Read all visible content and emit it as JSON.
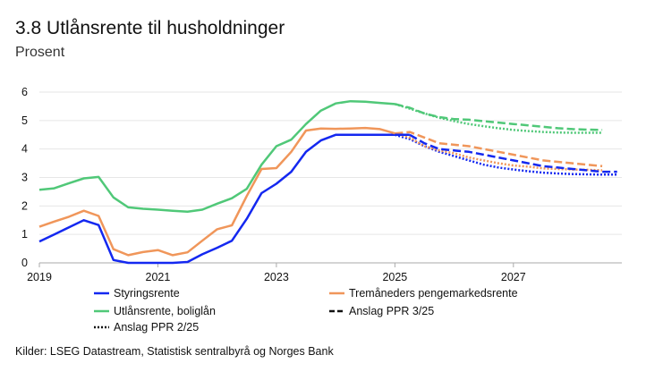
{
  "title": "3.8 Utlånsrente til husholdninger",
  "subtitle": "Prosent",
  "source": "Kilder: LSEG Datastream, Statistisk sentralbyrå og Norges Bank",
  "chart_data": {
    "type": "line",
    "xlim": [
      2019,
      2028.83
    ],
    "ylim": [
      0,
      6
    ],
    "xticks": [
      "2019",
      "2021",
      "2023",
      "2025",
      "2027"
    ],
    "yticks": [
      "0",
      "1",
      "2",
      "3",
      "4",
      "5",
      "6"
    ],
    "grid": "horizontal",
    "legend_placement": "bottom",
    "colors": {
      "blue": "#1428f0",
      "orange": "#f0965a",
      "green": "#50c878"
    },
    "series": [
      {
        "name": "Styringsrente",
        "color": "#1428f0",
        "style": "solid",
        "x_start": 2019,
        "step": 0.25,
        "values": [
          0.75,
          1.0,
          1.25,
          1.5,
          1.33,
          0.1,
          0,
          0,
          0,
          0,
          0.03,
          0.3,
          0.53,
          0.78,
          1.55,
          2.45,
          2.78,
          3.2,
          3.9,
          4.3,
          4.5,
          4.5,
          4.5,
          4.5,
          4.5,
          4.5
        ]
      },
      {
        "name": "Tremåneders pengemarkedsrente",
        "color": "#f0965a",
        "style": "solid",
        "x_start": 2019,
        "step": 0.25,
        "values": [
          1.27,
          1.45,
          1.62,
          1.83,
          1.65,
          0.48,
          0.27,
          0.38,
          0.45,
          0.27,
          0.37,
          0.78,
          1.18,
          1.32,
          2.35,
          3.3,
          3.33,
          3.9,
          4.65,
          4.72,
          4.71,
          4.72,
          4.74,
          4.7,
          4.55
        ]
      },
      {
        "name": "Utlånsrente, boliglån",
        "color": "#50c878",
        "style": "solid",
        "x_start": 2019,
        "step": 0.25,
        "values": [
          2.57,
          2.62,
          2.8,
          2.97,
          3.02,
          2.3,
          1.95,
          1.9,
          1.87,
          1.83,
          1.8,
          1.87,
          2.08,
          2.27,
          2.6,
          3.45,
          4.1,
          4.33,
          4.88,
          5.35,
          5.6,
          5.68,
          5.66,
          5.62,
          5.58
        ]
      },
      {
        "name": "Anslag PPR 3/25",
        "legend": true,
        "color": "#1428f0",
        "style": "dashed",
        "x_start": 2025.25,
        "step": 0.25,
        "values": [
          4.5,
          4.2,
          4.0,
          3.95,
          3.9,
          3.8,
          3.7,
          3.6,
          3.5,
          3.4,
          3.35,
          3.3,
          3.25,
          3.2,
          3.2
        ]
      },
      {
        "color": "#f0965a",
        "style": "dashed",
        "x_start": 2025,
        "step": 0.25,
        "values": [
          4.55,
          4.6,
          4.4,
          4.2,
          4.15,
          4.1,
          4.0,
          3.9,
          3.8,
          3.7,
          3.6,
          3.55,
          3.5,
          3.45,
          3.4
        ]
      },
      {
        "color": "#50c878",
        "style": "dashed",
        "x_start": 2025,
        "step": 0.25,
        "values": [
          5.58,
          5.45,
          5.25,
          5.12,
          5.05,
          5.03,
          4.98,
          4.93,
          4.88,
          4.83,
          4.78,
          4.73,
          4.7,
          4.68,
          4.67
        ]
      },
      {
        "name": "Anslag PPR 2/25",
        "legend": true,
        "color": "#1428f0",
        "style": "dotted",
        "x_start": 2025,
        "step": 0.25,
        "values": [
          4.5,
          4.35,
          4.1,
          3.9,
          3.75,
          3.6,
          3.45,
          3.35,
          3.28,
          3.22,
          3.17,
          3.14,
          3.12,
          3.11,
          3.1,
          3.1
        ]
      },
      {
        "color": "#f0965a",
        "style": "dotted",
        "x_start": 2025,
        "step": 0.25,
        "values": [
          4.55,
          4.4,
          4.1,
          3.95,
          3.85,
          3.7,
          3.6,
          3.5,
          3.42,
          3.38,
          3.32,
          3.3,
          3.28,
          3.27,
          3.25
        ]
      },
      {
        "color": "#50c878",
        "style": "dotted",
        "x_start": 2025,
        "step": 0.25,
        "values": [
          5.58,
          5.42,
          5.25,
          5.1,
          4.98,
          4.88,
          4.8,
          4.73,
          4.67,
          4.63,
          4.6,
          4.58,
          4.57,
          4.57,
          4.57
        ]
      }
    ]
  }
}
